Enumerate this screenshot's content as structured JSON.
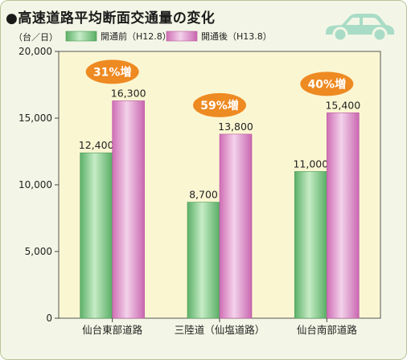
{
  "title": "●高速道路平均断面交通量の変化",
  "icons": {
    "car": "car-icon"
  },
  "colors": {
    "frame_bg": "#f3f6e6",
    "plot_bg": "#fbf6d2",
    "green": "#6fc27a",
    "pink": "#d880c0",
    "bubble": "#ee8a22"
  },
  "chart_data": {
    "type": "bar",
    "title": "高速道路平均断面交通量の変化",
    "ylabel": "（台／日）",
    "ylim": [
      0,
      20000
    ],
    "yticks": [
      0,
      5000,
      10000,
      15000,
      20000
    ],
    "ytick_labels": [
      "0",
      "5,000",
      "10,000",
      "15,000",
      "20,000"
    ],
    "categories": [
      "仙台東部道路",
      "三陸道（仙塩道路）",
      "仙台南部道路"
    ],
    "series": [
      {
        "name": "開通前（H12.8）",
        "values": [
          12400,
          8700,
          11000
        ],
        "labels": [
          "12,400",
          "8,700",
          "11,000"
        ]
      },
      {
        "name": "開通後（H13.8）",
        "values": [
          16300,
          13800,
          15400
        ],
        "labels": [
          "16,300",
          "13,800",
          "15,400"
        ]
      }
    ],
    "annotations": [
      "31%増",
      "59%増",
      "40%増"
    ],
    "legend_position": "top-left",
    "grid": false
  }
}
